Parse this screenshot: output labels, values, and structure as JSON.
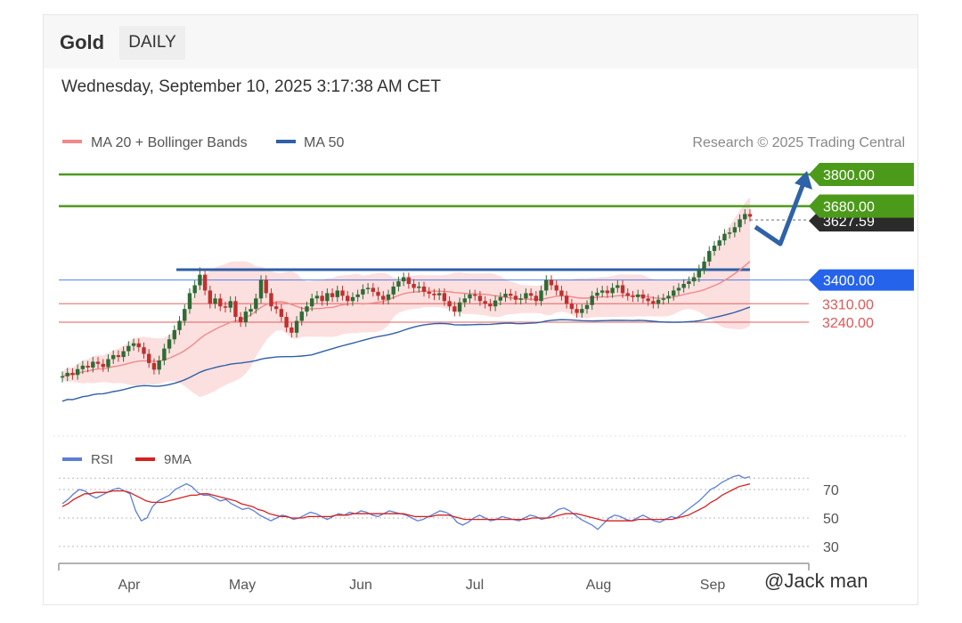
{
  "header": {
    "title": "Gold",
    "tab_label": "DAILY"
  },
  "datetime": "Wednesday, September 10, 2025 3:17:38 AM CET",
  "copyright": "Research © 2025 Trading Central",
  "watermark": "@Jack man",
  "colors": {
    "green": "#4c9a1a",
    "blue": "#2563eb",
    "dark": "#2b2b2b",
    "red_level": "#e05656",
    "ma20": "#f08a8a",
    "ma50": "#2f5fa8",
    "band_fill": "#fcd9d9",
    "up": "#2e6b35",
    "down": "#c0302d",
    "rsi": "#5b7fd6",
    "nine_ma": "#d62020",
    "arrow": "#2f62a6"
  },
  "chart_data": [
    {
      "type": "candlestick",
      "legend": [
        {
          "name": "MA 20 + Bollinger Bands",
          "color": "#f08a8a"
        },
        {
          "name": "MA 50",
          "color": "#2f5fa8"
        }
      ],
      "x_labels": [
        "Apr",
        "May",
        "Jun",
        "Jul",
        "Aug",
        "Sep"
      ],
      "levels": [
        {
          "value": 3800,
          "label": "3800.00",
          "style": "green-tag"
        },
        {
          "value": 3680,
          "label": "3680.00",
          "style": "green-tag"
        },
        {
          "value": 3627.59,
          "label": "3627.59",
          "style": "dark-tag"
        },
        {
          "value": 3400,
          "label": "3400.00",
          "style": "blue-tag"
        },
        {
          "value": 3310,
          "label": "3310.00",
          "style": "red-text"
        },
        {
          "value": 3240,
          "label": "3240.00",
          "style": "red-text"
        }
      ],
      "price": {
        "start": 3030,
        "closes": [
          3035,
          3048,
          3040,
          3062,
          3075,
          3068,
          3090,
          3082,
          3070,
          3100,
          3115,
          3108,
          3130,
          3150,
          3160,
          3145,
          3120,
          3085,
          3060,
          3095,
          3140,
          3175,
          3210,
          3245,
          3290,
          3350,
          3380,
          3420,
          3360,
          3310,
          3330,
          3300,
          3295,
          3320,
          3260,
          3240,
          3280,
          3290,
          3330,
          3400,
          3350,
          3300,
          3290,
          3260,
          3220,
          3200,
          3245,
          3280,
          3300,
          3330,
          3340,
          3320,
          3350,
          3335,
          3360,
          3340,
          3320,
          3335,
          3345,
          3365,
          3370,
          3355,
          3340,
          3325,
          3345,
          3375,
          3395,
          3410,
          3385,
          3370,
          3375,
          3355,
          3348,
          3342,
          3350,
          3320,
          3300,
          3280,
          3315,
          3330,
          3345,
          3340,
          3320,
          3310,
          3300,
          3322,
          3335,
          3348,
          3340,
          3325,
          3330,
          3350,
          3340,
          3320,
          3360,
          3400,
          3380,
          3360,
          3340,
          3310,
          3290,
          3275,
          3290,
          3305,
          3340,
          3352,
          3360,
          3350,
          3370,
          3380,
          3350,
          3340,
          3335,
          3345,
          3330,
          3320,
          3310,
          3325,
          3330,
          3340,
          3360,
          3370,
          3385,
          3395,
          3410,
          3440,
          3470,
          3510,
          3530,
          3550,
          3575,
          3580,
          3600,
          3630,
          3650,
          3640
        ],
        "highs_offset": 18,
        "spike_high": 3448
      },
      "y_domain": [
        2950,
        3840
      ]
    },
    {
      "type": "line",
      "legend": [
        {
          "name": "RSI",
          "color": "#5b7fd6"
        },
        {
          "name": "9MA",
          "color": "#d62020"
        }
      ],
      "y_ticks": [
        70,
        50,
        30
      ],
      "y_domain": [
        25,
        80
      ],
      "rsi_levels": {
        "upper": 78
      },
      "rsi": [
        60,
        63,
        67,
        70,
        69,
        66,
        64,
        66,
        68,
        70,
        71,
        69,
        67,
        55,
        48,
        50,
        58,
        62,
        64,
        66,
        70,
        72,
        74,
        72,
        68,
        66,
        66,
        64,
        62,
        63,
        60,
        58,
        56,
        57,
        55,
        52,
        50,
        48,
        50,
        52,
        51,
        49,
        50,
        52,
        54,
        53,
        51,
        49,
        51,
        53,
        52,
        54,
        53,
        55,
        54,
        52,
        51,
        53,
        55,
        54,
        53,
        52,
        50,
        48,
        49,
        51,
        53,
        55,
        54,
        52,
        47,
        45,
        47,
        50,
        52,
        50,
        48,
        49,
        51,
        50,
        49,
        48,
        50,
        52,
        51,
        49,
        50,
        53,
        56,
        57,
        55,
        52,
        49,
        47,
        45,
        42,
        46,
        50,
        52,
        51,
        49,
        48,
        50,
        52,
        50,
        48,
        47,
        49,
        51,
        50,
        53,
        56,
        59,
        62,
        66,
        70,
        72,
        75,
        77,
        79,
        80,
        78,
        79
      ],
      "nine_ma": [
        58,
        60,
        63,
        65,
        67,
        67,
        68,
        68,
        68,
        69,
        69,
        69,
        68,
        66,
        64,
        62,
        61,
        61,
        61,
        62,
        63,
        64,
        65,
        66,
        66,
        67,
        67,
        66,
        65,
        64,
        63,
        62,
        60,
        59,
        58,
        56,
        55,
        53,
        52,
        51,
        51,
        50,
        50,
        50,
        51,
        51,
        51,
        51,
        51,
        52,
        52,
        52,
        53,
        53,
        53,
        53,
        53,
        53,
        53,
        53,
        53,
        53,
        52,
        51,
        51,
        51,
        51,
        52,
        52,
        52,
        51,
        50,
        49,
        49,
        49,
        49,
        49,
        49,
        49,
        49,
        49,
        49,
        49,
        49,
        50,
        50,
        50,
        50,
        51,
        52,
        53,
        53,
        53,
        52,
        51,
        50,
        49,
        48,
        48,
        48,
        48,
        48,
        48,
        49,
        49,
        49,
        49,
        49,
        49,
        49,
        50,
        51,
        52,
        54,
        56,
        58,
        61,
        63,
        66,
        68,
        70,
        72,
        73,
        74
      ]
    }
  ]
}
